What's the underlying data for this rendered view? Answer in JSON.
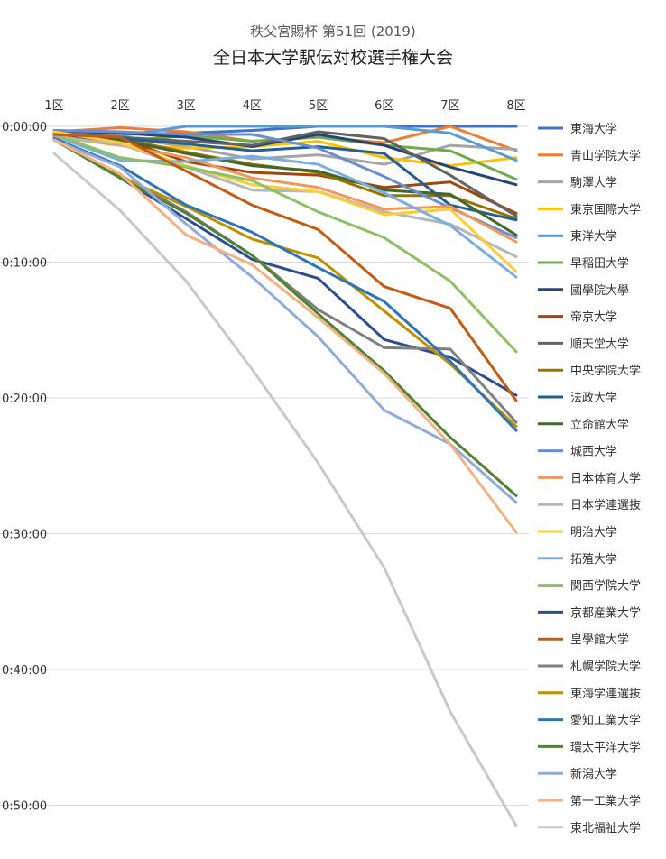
{
  "chart_data": {
    "type": "line",
    "title": "秩父宮賜杯 第51回 (2019)",
    "subtitle": "全日本大学駅伝対校選手権大会",
    "categories": [
      "1区",
      "2区",
      "3区",
      "4区",
      "5区",
      "6区",
      "7区",
      "8区"
    ],
    "y_ticks": [
      "0:00:00",
      "0:10:00",
      "0:20:00",
      "0:30:00",
      "0:40:00",
      "0:50:00"
    ],
    "y_unit": "minutes",
    "ylim": [
      0,
      52
    ],
    "y_inverted": true,
    "grid": true,
    "legend_position": "right",
    "series": [
      {
        "name": "東海大学",
        "color": "#4472C4",
        "values": [
          0.5,
          0.6,
          0.5,
          0.3,
          0.0,
          0.0,
          0.0,
          0.0
        ]
      },
      {
        "name": "青山学院大学",
        "color": "#ED7D31",
        "values": [
          0.4,
          0.1,
          0.4,
          1.1,
          0.8,
          1.2,
          0.0,
          1.8
        ]
      },
      {
        "name": "駒澤大学",
        "color": "#A5A5A5",
        "values": [
          0.5,
          0.8,
          1.5,
          2.4,
          2.1,
          2.8,
          1.4,
          1.7
        ]
      },
      {
        "name": "東京国際大学",
        "color": "#FFC000",
        "values": [
          0.8,
          1.4,
          1.6,
          1.5,
          1.1,
          2.3,
          2.9,
          2.3
        ]
      },
      {
        "name": "東洋大学",
        "color": "#5B9BD5",
        "values": [
          0.5,
          0.7,
          0.0,
          0.0,
          0.0,
          0.0,
          0.5,
          2.5
        ]
      },
      {
        "name": "早稲田大学",
        "color": "#70AD47",
        "values": [
          0.9,
          1.1,
          0.7,
          1.1,
          0.8,
          1.4,
          1.8,
          3.9
        ]
      },
      {
        "name": "國學院大學",
        "color": "#264478",
        "values": [
          0.3,
          0.5,
          0.8,
          1.5,
          0.6,
          1.4,
          3.0,
          4.3
        ]
      },
      {
        "name": "帝京大学",
        "color": "#9E480E",
        "values": [
          0.6,
          0.9,
          2.6,
          3.4,
          3.6,
          4.5,
          4.1,
          6.4
        ]
      },
      {
        "name": "順天堂大学",
        "color": "#636363",
        "values": [
          0.5,
          0.8,
          1.1,
          1.4,
          0.4,
          0.9,
          3.6,
          6.6
        ]
      },
      {
        "name": "中央学院大学",
        "color": "#997300",
        "values": [
          0.7,
          0.9,
          1.9,
          2.8,
          3.4,
          5.1,
          5.1,
          6.8
        ]
      },
      {
        "name": "法政大学",
        "color": "#255E91",
        "values": [
          0.8,
          0.9,
          1.3,
          1.8,
          1.5,
          2.0,
          5.8,
          6.9
        ]
      },
      {
        "name": "立命館大学",
        "color": "#43682B",
        "values": [
          1.0,
          1.0,
          2.0,
          2.9,
          3.3,
          4.7,
          5.0,
          8.0
        ]
      },
      {
        "name": "城西大学",
        "color": "#698ED0",
        "values": [
          0.3,
          0.4,
          0.6,
          0.6,
          1.6,
          3.7,
          6.0,
          8.2
        ]
      },
      {
        "name": "日本体育大学",
        "color": "#F1975A",
        "values": [
          0.7,
          1.4,
          2.3,
          3.8,
          4.5,
          6.1,
          5.9,
          8.5
        ]
      },
      {
        "name": "日本学連選抜",
        "color": "#B7B7B7",
        "values": [
          0.8,
          1.3,
          3.0,
          4.7,
          4.8,
          6.3,
          7.2,
          9.6
        ]
      },
      {
        "name": "明治大学",
        "color": "#FFCD33",
        "values": [
          0.4,
          1.2,
          2.9,
          4.3,
          4.8,
          6.5,
          6.1,
          10.7
        ]
      },
      {
        "name": "拓殖大学",
        "color": "#7CAFDD",
        "values": [
          0.7,
          2.5,
          2.6,
          2.2,
          2.8,
          4.9,
          7.3,
          11.1
        ]
      },
      {
        "name": "関西学院大学",
        "color": "#8CC168",
        "values": [
          0.6,
          2.3,
          3.0,
          4.0,
          6.3,
          8.2,
          11.4,
          16.6
        ]
      },
      {
        "name": "京都産業大学",
        "color": "#2E4E8F",
        "values": [
          0.9,
          3.8,
          6.8,
          9.8,
          11.2,
          15.7,
          17.0,
          19.8
        ]
      },
      {
        "name": "皇學館大学",
        "color": "#C55A11",
        "values": [
          0.6,
          0.8,
          3.3,
          5.8,
          7.6,
          11.8,
          13.4,
          20.2
        ]
      },
      {
        "name": "札幌学院大学",
        "color": "#808080",
        "values": [
          1.0,
          3.6,
          6.3,
          9.5,
          13.5,
          16.3,
          16.4,
          21.8
        ]
      },
      {
        "name": "東海学連選抜",
        "color": "#BF9000",
        "values": [
          1.0,
          3.7,
          5.9,
          8.3,
          9.7,
          13.6,
          17.5,
          22.1
        ]
      },
      {
        "name": "愛知工業大学",
        "color": "#2E75B6",
        "values": [
          0.9,
          2.9,
          5.8,
          7.8,
          10.4,
          12.9,
          17.3,
          22.4
        ]
      },
      {
        "name": "環太平洋大学",
        "color": "#548235",
        "values": [
          1.0,
          3.8,
          6.4,
          9.5,
          13.8,
          18.0,
          22.9,
          27.2
        ]
      },
      {
        "name": "新潟大学",
        "color": "#8FAADC",
        "values": [
          1.0,
          3.0,
          7.2,
          11.1,
          15.5,
          20.9,
          23.4,
          27.7
        ]
      },
      {
        "name": "第一工業大学",
        "color": "#F4B183",
        "values": [
          1.0,
          3.5,
          8.0,
          10.2,
          14.1,
          18.2,
          23.4,
          29.9
        ]
      },
      {
        "name": "東北福祉大学",
        "color": "#C9C9C9",
        "values": [
          2.0,
          6.2,
          11.4,
          17.9,
          24.8,
          32.5,
          43.1,
          51.5
        ]
      }
    ]
  }
}
